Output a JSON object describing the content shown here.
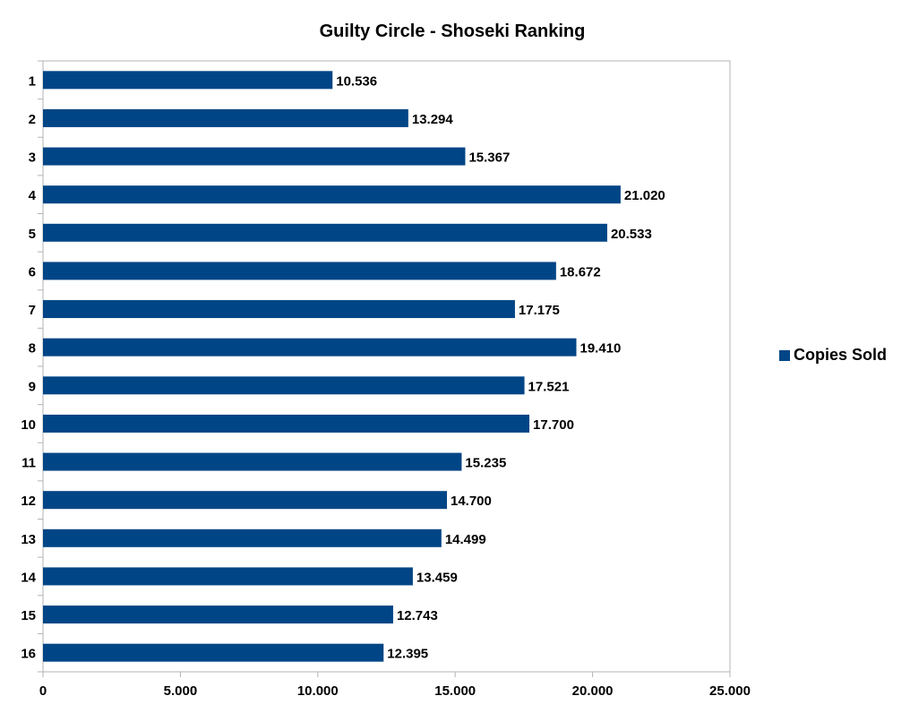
{
  "chart_data": {
    "type": "bar",
    "orientation": "horizontal",
    "title": "Guilty Circle - Shoseki Ranking",
    "categories": [
      "1",
      "2",
      "3",
      "4",
      "5",
      "6",
      "7",
      "8",
      "9",
      "10",
      "11",
      "12",
      "13",
      "14",
      "15",
      "16"
    ],
    "series": [
      {
        "name": "Copies Sold",
        "color": "#004586",
        "values": [
          10536,
          13294,
          15367,
          21020,
          20533,
          18672,
          17175,
          19410,
          17521,
          17700,
          15235,
          14700,
          14499,
          13459,
          12743,
          12395
        ],
        "value_labels": [
          "10.536",
          "13.294",
          "15.367",
          "21.020",
          "20.533",
          "18.672",
          "17.175",
          "19.410",
          "17.521",
          "17.700",
          "15.235",
          "14.700",
          "14.499",
          "13.459",
          "12.743",
          "12.395"
        ]
      }
    ],
    "xlim": [
      0,
      25000
    ],
    "x_ticks": [
      0,
      5000,
      10000,
      15000,
      20000,
      25000
    ],
    "x_tick_labels": [
      "0",
      "5.000",
      "10.000",
      "15.000",
      "20.000",
      "25.000"
    ],
    "grid": false,
    "legend_position": "right"
  }
}
